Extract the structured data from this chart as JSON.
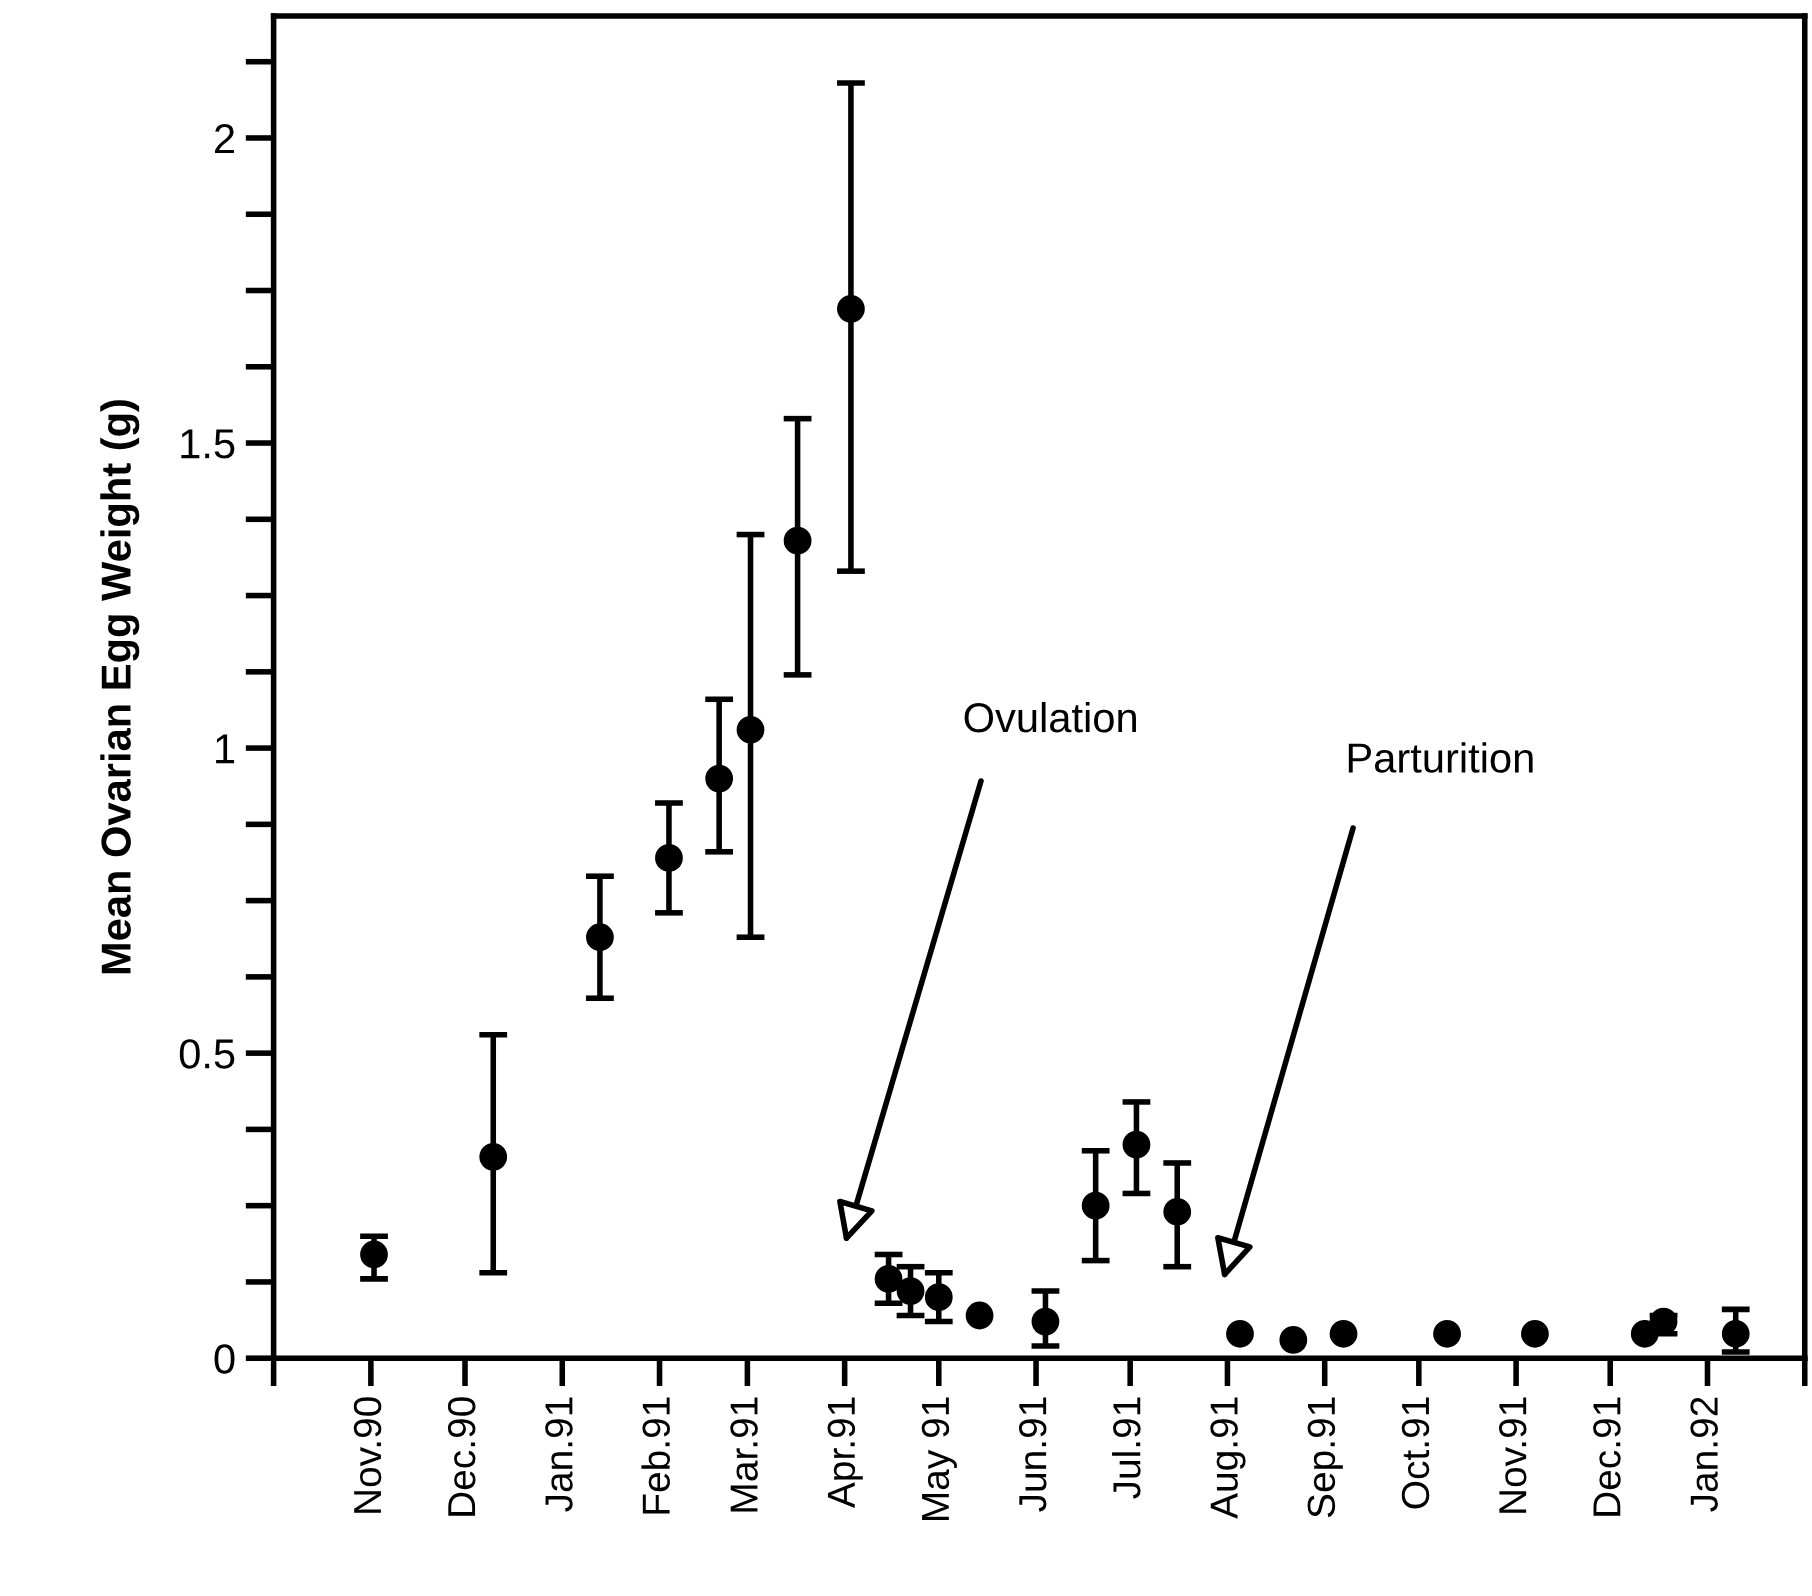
{
  "chart_data": {
    "type": "scatter",
    "ylabel": "Mean Ovarian Egg Weight (g)",
    "x": [
      "1990-11-02",
      "1990-12-10",
      "1991-01-13",
      "1991-02-04",
      "1991-02-20",
      "1991-03-02",
      "1991-03-17",
      "1991-04-03",
      "1991-04-15",
      "1991-04-22",
      "1991-05-01",
      "1991-05-14",
      "1991-06-04",
      "1991-06-20",
      "1991-07-03",
      "1991-07-16",
      "1991-08-05",
      "1991-08-22",
      "1991-09-07",
      "1991-10-10",
      "1991-11-07",
      "1991-12-12",
      "1991-12-18",
      "1992-01-10"
    ],
    "series": [
      {
        "color": "#000000",
        "values": [
          0.17,
          0.33,
          0.69,
          0.82,
          0.95,
          1.03,
          1.34,
          1.72,
          0.13,
          0.11,
          0.1,
          0.07,
          0.06,
          0.25,
          0.35,
          0.24,
          0.04,
          0.03,
          0.04,
          0.04,
          0.04,
          0.04,
          0.06,
          0.04
        ],
        "errors": [
          [
            0.13,
            0.2
          ],
          [
            0.14,
            0.53
          ],
          [
            0.59,
            0.79
          ],
          [
            0.73,
            0.91
          ],
          [
            0.83,
            1.08
          ],
          [
            0.69,
            1.35
          ],
          [
            1.12,
            1.54
          ],
          [
            1.29,
            2.09
          ],
          [
            0.09,
            0.17
          ],
          [
            0.07,
            0.15
          ],
          [
            0.06,
            0.14
          ],
          null,
          [
            0.02,
            0.11
          ],
          [
            0.16,
            0.34
          ],
          [
            0.27,
            0.42
          ],
          [
            0.15,
            0.32
          ],
          null,
          null,
          null,
          null,
          null,
          null,
          [
            0.04,
            0.07
          ],
          [
            0.01,
            0.08
          ]
        ]
      }
    ],
    "marker": "circle",
    "xlim": [
      "1990-10-01",
      "1992-02-01"
    ],
    "xticks": [
      {
        "value": "1990-10-01",
        "label": null
      },
      {
        "value": "1990-11-01",
        "label": "Nov.90"
      },
      {
        "value": "1990-12-01",
        "label": "Dec.90"
      },
      {
        "value": "1991-01-01",
        "label": "Jan.91"
      },
      {
        "value": "1991-02-01",
        "label": "Feb.91"
      },
      {
        "value": "1991-03-01",
        "label": "Mar.91"
      },
      {
        "value": "1991-04-01",
        "label": "Apr.91"
      },
      {
        "value": "1991-05-01",
        "label": "May 91"
      },
      {
        "value": "1991-06-01",
        "label": "Jun.91"
      },
      {
        "value": "1991-07-01",
        "label": "Jul.91"
      },
      {
        "value": "1991-08-01",
        "label": "Aug.91"
      },
      {
        "value": "1991-09-01",
        "label": "Sep.91"
      },
      {
        "value": "1991-10-01",
        "label": "Oct.91"
      },
      {
        "value": "1991-11-01",
        "label": "Nov.91"
      },
      {
        "value": "1991-12-01",
        "label": "Dec.91"
      },
      {
        "value": "1992-01-01",
        "label": "Jan.92"
      },
      {
        "value": "1992-02-01",
        "label": null
      }
    ],
    "ylim": [
      0,
      2.2
    ],
    "yticks": [
      0,
      {
        "value": 0.125,
        "label": null
      },
      {
        "value": 0.25,
        "label": null
      },
      {
        "value": 0.375,
        "label": null
      },
      0.5,
      {
        "value": 0.625,
        "label": null
      },
      {
        "value": 0.75,
        "label": null
      },
      {
        "value": 0.875,
        "label": null
      },
      1,
      {
        "value": 1.125,
        "label": null
      },
      {
        "value": 1.25,
        "label": null
      },
      {
        "value": 1.375,
        "label": null
      },
      1.5,
      {
        "value": 1.625,
        "label": null
      },
      {
        "value": 1.75,
        "label": null
      },
      {
        "value": 1.875,
        "label": null
      },
      2,
      {
        "value": 2.125,
        "label": null
      }
    ],
    "grid": false,
    "legend": false,
    "annotations": [
      "Ovulation",
      "Parturition"
    ]
  }
}
